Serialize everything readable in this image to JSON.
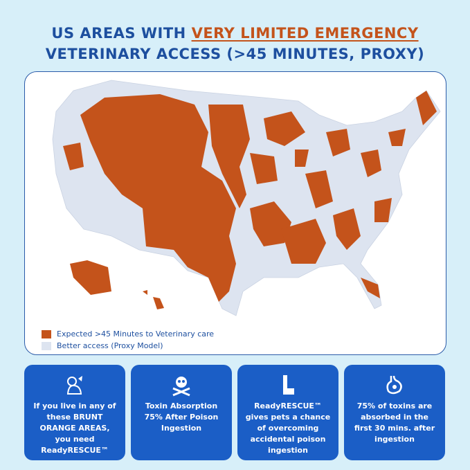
{
  "header": {
    "title_prefix": "US AREAS WITH",
    "title_highlight": "VERY LIMITED EMERGENCY",
    "title_line2": "VETERINARY ACCESS (>45 MINUTES, PROXY)"
  },
  "legend": [
    {
      "label": "Expected >45 Minutes to Veterinary care",
      "color": "#c4531b"
    },
    {
      "label": "Better access (Proxy Model)",
      "color": "#dde4f0"
    }
  ],
  "cards": [
    {
      "text": "If you live in any of these BRUNT ORANGE AREAS, you need ReadyRESCUE™"
    },
    {
      "text": "Toxin Absorption 75% After Poison Ingestion"
    },
    {
      "text": "ReadyRESCUE™ gives pets a chance of overcoming accidental poison ingestion"
    },
    {
      "text": "75% of toxins are absorbed in the first 30 mins. after ingestion"
    }
  ]
}
